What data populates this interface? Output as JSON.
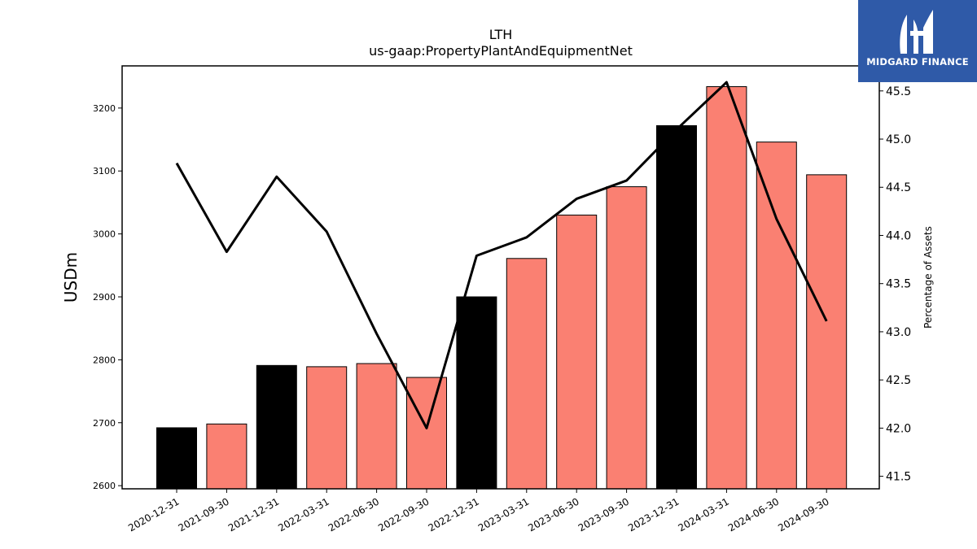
{
  "chart_data": {
    "type": "bar",
    "title": "LTH",
    "subtitle": "us-gaap:PropertyPlantAndEquipmentNet",
    "ylabel": "USDm",
    "y2label": "Percentage of Assets",
    "categories": [
      "2020-12-31",
      "2021-09-30",
      "2021-12-31",
      "2022-03-31",
      "2022-06-30",
      "2022-09-30",
      "2022-12-31",
      "2023-03-31",
      "2023-06-30",
      "2023-09-30",
      "2023-12-31",
      "2024-03-31",
      "2024-06-30",
      "2024-09-30"
    ],
    "values": [
      2692,
      2698,
      2791,
      2789,
      2794,
      2772,
      2900,
      2961,
      3030,
      3075,
      3172,
      3234,
      3146,
      3094
    ],
    "bar_colors": [
      "#000000",
      "#fa8072",
      "#000000",
      "#fa8072",
      "#fa8072",
      "#fa8072",
      "#000000",
      "#fa8072",
      "#fa8072",
      "#fa8072",
      "#000000",
      "#fa8072",
      "#fa8072",
      "#fa8072"
    ],
    "line_series": {
      "values": [
        44.75,
        43.83,
        44.61,
        44.04,
        42.98,
        42.0,
        43.79,
        43.98,
        44.38,
        44.57,
        45.1,
        45.59,
        44.17,
        43.11
      ],
      "color": "#000000"
    },
    "ylim": [
      2595,
      3267
    ],
    "yticks": [
      2600,
      2700,
      2800,
      2900,
      3000,
      3100,
      3200
    ],
    "y2lim": [
      41.37,
      45.76
    ],
    "y2ticks": [
      "41.5",
      "42.0",
      "42.5",
      "43.0",
      "43.5",
      "44.0",
      "44.5",
      "45.0",
      "45.5"
    ],
    "grid": false
  },
  "logo": {
    "text": "MIDGARD FINANCE",
    "icon": "midgard-logo-icon"
  }
}
